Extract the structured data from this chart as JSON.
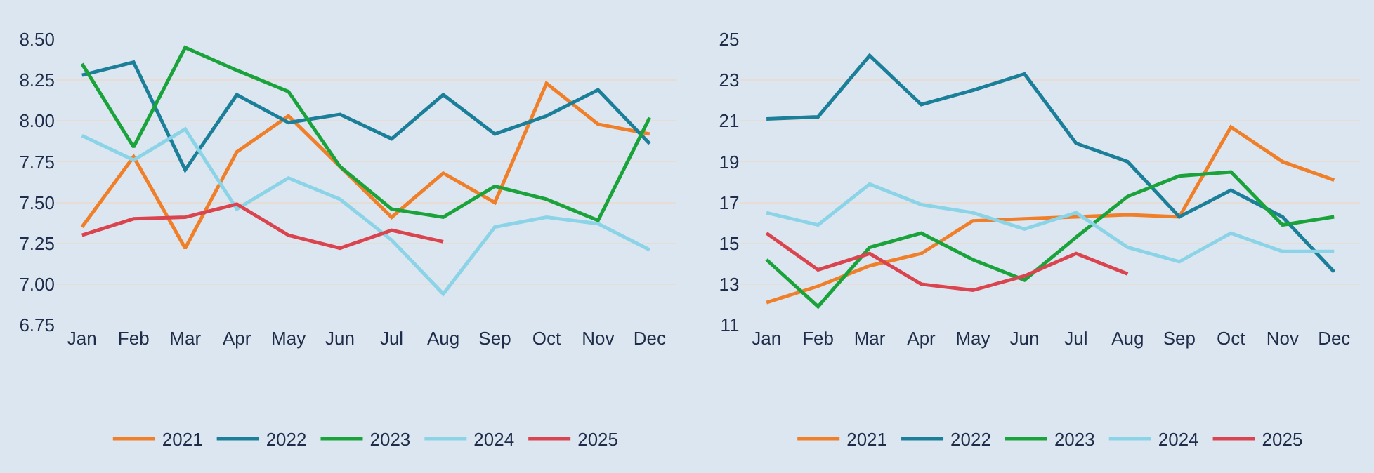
{
  "chart_data": [
    {
      "type": "line",
      "categories": [
        "Jan",
        "Feb",
        "Mar",
        "Apr",
        "May",
        "Jun",
        "Jul",
        "Aug",
        "Sep",
        "Oct",
        "Nov",
        "Dec"
      ],
      "ylim": [
        6.75,
        8.5
      ],
      "yticks": [
        {
          "value": 6.75,
          "label": "6.75"
        },
        {
          "value": 7,
          "label": "7.00"
        },
        {
          "value": 7.25,
          "label": "7.25"
        },
        {
          "value": 7.5,
          "label": "7.50"
        },
        {
          "value": 7.75,
          "label": "7.75"
        },
        {
          "value": 8,
          "label": "8.00"
        },
        {
          "value": 8.25,
          "label": "8.25"
        },
        {
          "value": 8.5,
          "label": "8.50"
        }
      ],
      "grid": "y",
      "legend": "bottom",
      "marker": "none",
      "line_style": "solid",
      "series": [
        {
          "name": "2021",
          "color": "#f07f2a",
          "values": [
            7.35,
            7.78,
            7.22,
            7.81,
            8.03,
            7.72,
            7.41,
            7.68,
            7.5,
            8.23,
            7.98,
            7.92
          ]
        },
        {
          "name": "2022",
          "color": "#1c7f99",
          "values": [
            8.28,
            8.36,
            7.7,
            8.16,
            7.99,
            8.04,
            7.89,
            8.16,
            7.92,
            8.03,
            8.19,
            7.86
          ]
        },
        {
          "name": "2023",
          "color": "#1aa33a",
          "values": [
            8.35,
            7.84,
            8.45,
            8.31,
            8.18,
            7.72,
            7.46,
            7.41,
            7.6,
            7.52,
            7.39,
            8.02
          ]
        },
        {
          "name": "2024",
          "color": "#8bd3e6",
          "values": [
            7.91,
            7.76,
            7.95,
            7.46,
            7.65,
            7.52,
            7.27,
            6.94,
            7.35,
            7.41,
            7.37,
            7.21
          ]
        },
        {
          "name": "2025",
          "color": "#d9444f",
          "values": [
            7.3,
            7.4,
            7.41,
            7.49,
            7.3,
            7.22,
            7.33,
            7.26,
            null,
            null,
            null,
            null
          ]
        }
      ]
    },
    {
      "type": "line",
      "categories": [
        "Jan",
        "Feb",
        "Mar",
        "Apr",
        "May",
        "Jun",
        "Jul",
        "Aug",
        "Sep",
        "Oct",
        "Nov",
        "Dec"
      ],
      "ylim": [
        11,
        25
      ],
      "yticks": [
        11,
        13,
        15,
        17,
        19,
        21,
        23,
        25
      ],
      "grid": "y",
      "legend": "bottom",
      "marker": "none",
      "line_style": "solid",
      "series": [
        {
          "name": "2021",
          "color": "#f07f2a",
          "values": [
            12.1,
            12.9,
            13.9,
            14.5,
            16.1,
            16.2,
            16.3,
            16.4,
            16.3,
            20.7,
            19.0,
            18.1
          ]
        },
        {
          "name": "2022",
          "color": "#1c7f99",
          "values": [
            21.1,
            21.2,
            24.2,
            21.8,
            22.5,
            23.3,
            19.9,
            19.0,
            16.3,
            17.6,
            16.3,
            13.6
          ]
        },
        {
          "name": "2023",
          "color": "#1aa33a",
          "values": [
            14.2,
            11.9,
            14.8,
            15.5,
            14.2,
            13.2,
            15.3,
            17.3,
            18.3,
            18.5,
            15.9,
            16.3
          ]
        },
        {
          "name": "2024",
          "color": "#8bd3e6",
          "values": [
            16.5,
            15.9,
            17.9,
            16.9,
            16.5,
            15.7,
            16.5,
            14.8,
            14.1,
            15.5,
            14.6,
            14.6
          ]
        },
        {
          "name": "2025",
          "color": "#d9444f",
          "values": [
            15.5,
            13.7,
            14.5,
            13.0,
            12.7,
            13.4,
            14.5,
            13.5,
            null,
            null,
            null,
            null
          ]
        }
      ]
    }
  ]
}
